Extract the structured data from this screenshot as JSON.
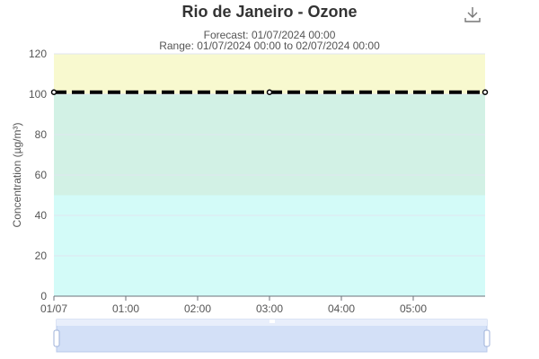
{
  "chart_data": {
    "type": "line",
    "title": "Rio de Janeiro - Ozone",
    "subtitle_lines": [
      "Forecast: 01/07/2024 00:00",
      "Range: 01/07/2024 00:00 to 02/07/2024 00:00"
    ],
    "ylabel": "Concentration (µg/m³)",
    "ylim": [
      0,
      120
    ],
    "y_ticks": [
      0,
      20,
      40,
      60,
      80,
      100,
      120
    ],
    "x_range_hours": [
      0,
      6
    ],
    "x_ticks": [
      {
        "value": 0,
        "label": "01/07"
      },
      {
        "value": 1,
        "label": "01:00"
      },
      {
        "value": 2,
        "label": "02:00"
      },
      {
        "value": 3,
        "label": "03:00"
      },
      {
        "value": 4,
        "label": "04:00"
      },
      {
        "value": 5,
        "label": "05:00"
      }
    ],
    "bands": [
      {
        "from": 0,
        "to": 50,
        "color": "#d3fbf8"
      },
      {
        "from": 50,
        "to": 100,
        "color": "#d2f1e5"
      },
      {
        "from": 100,
        "to": 120,
        "color": "#f8f9cf"
      }
    ],
    "grid": true,
    "series": [
      {
        "color": "#000000",
        "dash": true,
        "points": [
          {
            "x": 0,
            "y": 101
          },
          {
            "x": 3,
            "y": 101
          },
          {
            "x": 6,
            "y": 101
          }
        ]
      }
    ],
    "zoom_slider": {
      "start": 0,
      "end": 1
    }
  },
  "toolbar": {
    "download_icon": "download-icon"
  },
  "colors": {
    "axis": "#6e7079",
    "grid": "#e0e6f1",
    "slider": "#d3e0f7",
    "slider_border": "#b7c7ea"
  }
}
